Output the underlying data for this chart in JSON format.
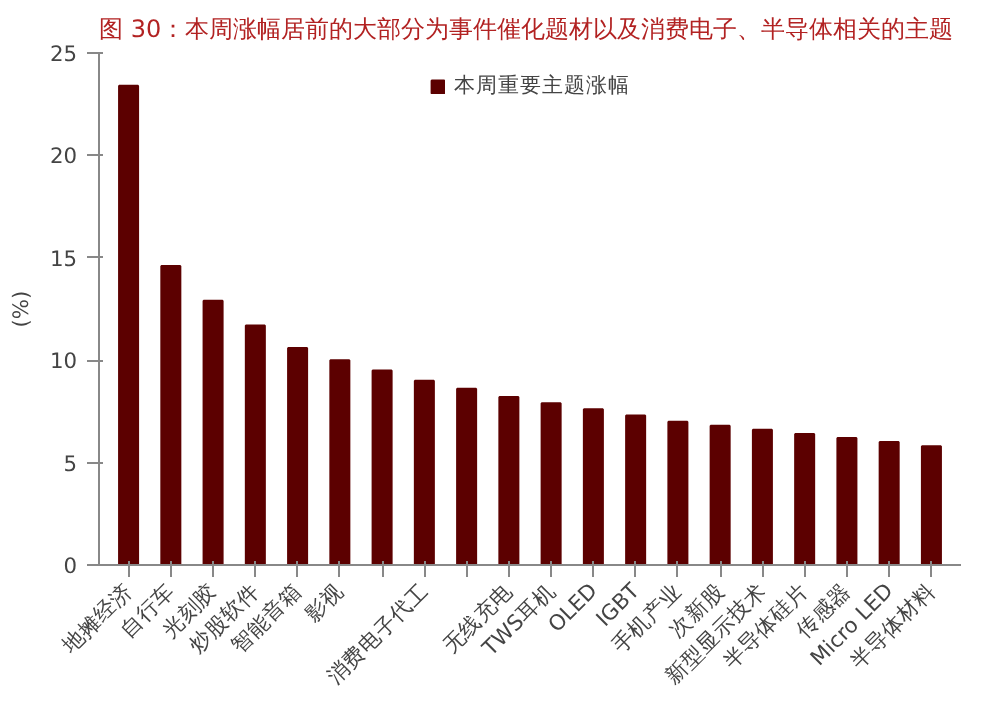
{
  "chart_data": {
    "type": "bar",
    "title": "图 30：本周涨幅居前的大部分为事件催化题材以及消费电子、半导体相关的主题",
    "ylabel": "(%)",
    "categories": [
      "地摊经济",
      "自行车",
      "光刻胶",
      "炒股软件",
      "智能音箱",
      "影视",
      null,
      "消费电子代工",
      null,
      "无线充电",
      "TWS耳机",
      "OLED",
      "IGBT",
      "手机产业",
      "次新股",
      "新型显示技术",
      "半导体硅片",
      "传感器",
      "Micro LED",
      "半导体材料"
    ],
    "series": [
      {
        "name": "本周重要主题涨幅",
        "color": "#5c0000",
        "values": [
          23.4,
          14.6,
          12.9,
          11.7,
          10.6,
          10.0,
          9.5,
          9.0,
          8.6,
          8.2,
          7.9,
          7.6,
          7.3,
          7.0,
          6.8,
          6.6,
          6.4,
          6.2,
          6.0,
          5.8
        ]
      }
    ],
    "ylim": [
      0,
      25
    ],
    "yticks": [
      0,
      5,
      10,
      15,
      20,
      25
    ],
    "grid": false,
    "legend": "top"
  }
}
